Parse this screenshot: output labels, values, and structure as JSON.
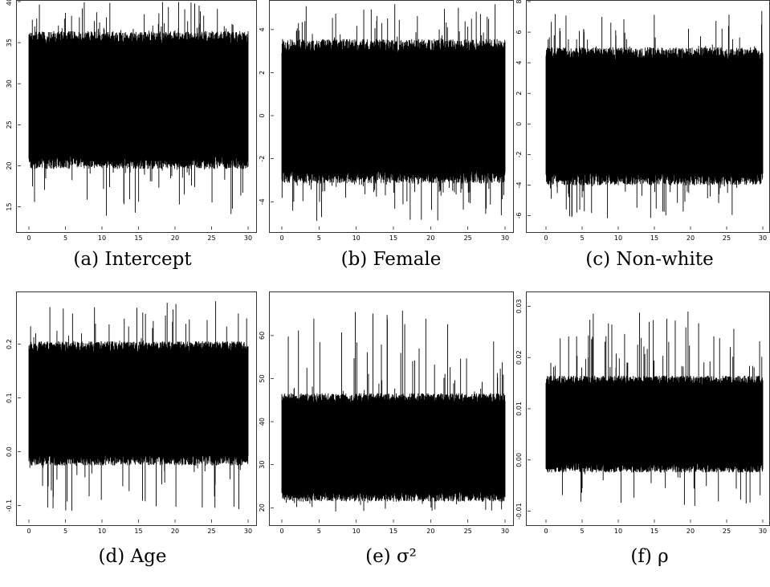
{
  "chart_data": [
    {
      "type": "line",
      "caption": "(a) Intercept",
      "x_ticks": [
        "0",
        "5",
        "10",
        "15",
        "20",
        "25",
        "30"
      ],
      "xlim": [
        0,
        30
      ],
      "y_ticks": [
        "15",
        "20",
        "25",
        "30",
        "35",
        "40"
      ],
      "ylim": [
        13,
        40
      ],
      "band": {
        "center": 28,
        "core_low": 20,
        "core_high": 36,
        "min": 13.5,
        "max": 40
      }
    },
    {
      "type": "line",
      "caption": "(b) Female",
      "x_ticks": [
        "0",
        "5",
        "10",
        "15",
        "20",
        "25",
        "30"
      ],
      "xlim": [
        0,
        30
      ],
      "y_ticks": [
        "-4",
        "-2",
        "0",
        "2",
        "4"
      ],
      "ylim": [
        -5,
        5.3
      ],
      "band": {
        "center": 0.2,
        "core_low": -3.2,
        "core_high": 3.2,
        "min": -4.9,
        "max": 5.2
      }
    },
    {
      "type": "line",
      "caption": "(c) Non-white",
      "x_ticks": [
        "0",
        "5",
        "10",
        "15",
        "20",
        "25",
        "30"
      ],
      "xlim": [
        0,
        30
      ],
      "y_ticks": [
        "-6",
        "-4",
        "-2",
        "0",
        "2",
        "4",
        "6",
        "8"
      ],
      "ylim": [
        -6.5,
        8
      ],
      "band": {
        "center": 0.5,
        "core_low": -3.8,
        "core_high": 4.8,
        "min": -6.2,
        "max": 7.5
      }
    },
    {
      "type": "line",
      "caption": "(d) Age",
      "x_ticks": [
        "0",
        "5",
        "10",
        "15",
        "20",
        "25",
        "30"
      ],
      "xlim": [
        0,
        30
      ],
      "y_ticks": [
        "-0.1",
        "0.0",
        "0.1",
        "0.2"
      ],
      "ylim": [
        -0.12,
        0.28
      ],
      "band": {
        "center": 0.09,
        "core_low": -0.02,
        "core_high": 0.2,
        "min": -0.11,
        "max": 0.28
      }
    },
    {
      "type": "line",
      "caption": "(e) σ²",
      "caption_symbol": "σ",
      "caption_superscript": "2",
      "x_ticks": [
        "0",
        "5",
        "10",
        "15",
        "20",
        "25",
        "30"
      ],
      "xlim": [
        0,
        30
      ],
      "y_ticks": [
        "20",
        "30",
        "40",
        "50",
        "60"
      ],
      "ylim": [
        18,
        68
      ],
      "band": {
        "center": 34,
        "core_low": 23,
        "core_high": 47,
        "min": 19,
        "max": 67
      }
    },
    {
      "type": "line",
      "caption": "(f) ρ",
      "caption_symbol": "ρ",
      "x_ticks": [
        "0",
        "5",
        "10",
        "15",
        "20",
        "25",
        "30"
      ],
      "xlim": [
        0,
        30
      ],
      "y_ticks": [
        "-0.01",
        "0.00",
        "0.01",
        "0.02",
        "0.03"
      ],
      "ylim": [
        -0.011,
        0.031
      ],
      "band": {
        "center": 0.007,
        "core_low": 0.0,
        "core_high": 0.018,
        "min": -0.009,
        "max": 0.029
      }
    }
  ]
}
